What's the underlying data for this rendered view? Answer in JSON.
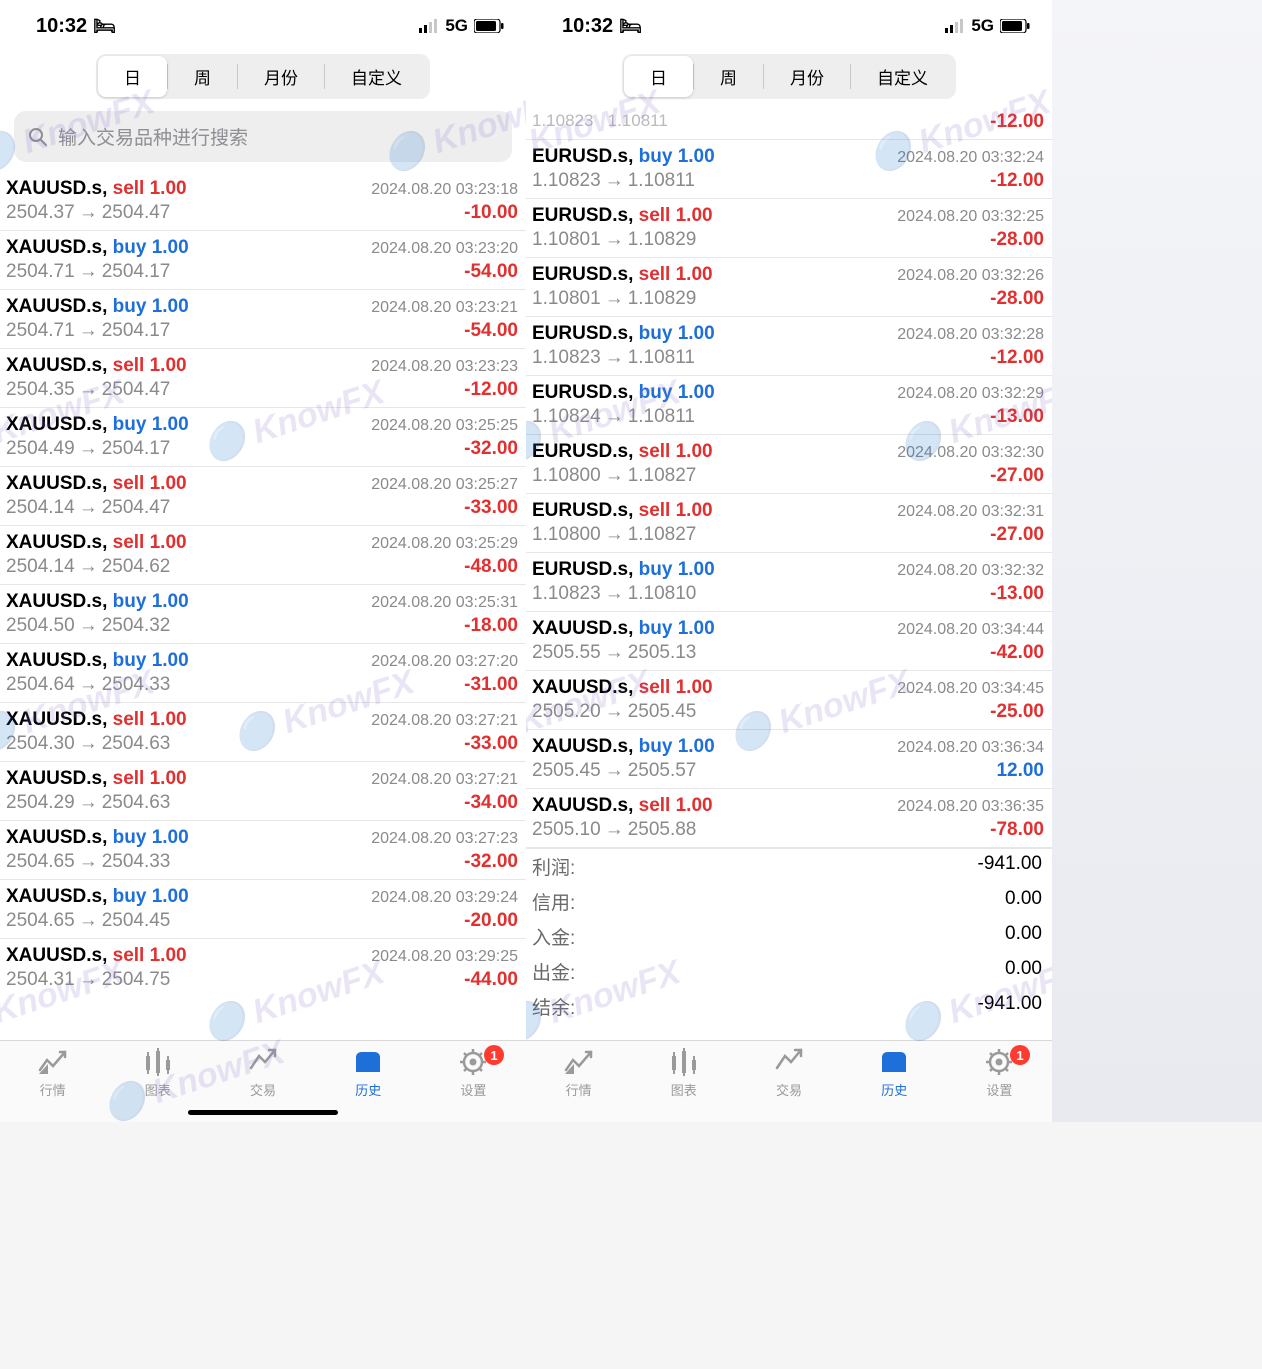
{
  "status": {
    "time": "10:32",
    "network": "5G"
  },
  "tabs": {
    "seg": [
      "日",
      "周",
      "月份",
      "自定义"
    ],
    "active": 0
  },
  "search_placeholder": "输入交易品种进行搜索",
  "left_trades": [
    {
      "sym": "XAUUSD.s",
      "act": "sell",
      "vol": "1.00",
      "ts": "2024.08.20 03:23:18",
      "p1": "2504.37",
      "p2": "2504.47",
      "pl": "-10.00"
    },
    {
      "sym": "XAUUSD.s",
      "act": "buy",
      "vol": "1.00",
      "ts": "2024.08.20 03:23:20",
      "p1": "2504.71",
      "p2": "2504.17",
      "pl": "-54.00"
    },
    {
      "sym": "XAUUSD.s",
      "act": "buy",
      "vol": "1.00",
      "ts": "2024.08.20 03:23:21",
      "p1": "2504.71",
      "p2": "2504.17",
      "pl": "-54.00"
    },
    {
      "sym": "XAUUSD.s",
      "act": "sell",
      "vol": "1.00",
      "ts": "2024.08.20 03:23:23",
      "p1": "2504.35",
      "p2": "2504.47",
      "pl": "-12.00"
    },
    {
      "sym": "XAUUSD.s",
      "act": "buy",
      "vol": "1.00",
      "ts": "2024.08.20 03:25:25",
      "p1": "2504.49",
      "p2": "2504.17",
      "pl": "-32.00"
    },
    {
      "sym": "XAUUSD.s",
      "act": "sell",
      "vol": "1.00",
      "ts": "2024.08.20 03:25:27",
      "p1": "2504.14",
      "p2": "2504.47",
      "pl": "-33.00"
    },
    {
      "sym": "XAUUSD.s",
      "act": "sell",
      "vol": "1.00",
      "ts": "2024.08.20 03:25:29",
      "p1": "2504.14",
      "p2": "2504.62",
      "pl": "-48.00"
    },
    {
      "sym": "XAUUSD.s",
      "act": "buy",
      "vol": "1.00",
      "ts": "2024.08.20 03:25:31",
      "p1": "2504.50",
      "p2": "2504.32",
      "pl": "-18.00"
    },
    {
      "sym": "XAUUSD.s",
      "act": "buy",
      "vol": "1.00",
      "ts": "2024.08.20 03:27:20",
      "p1": "2504.64",
      "p2": "2504.33",
      "pl": "-31.00"
    },
    {
      "sym": "XAUUSD.s",
      "act": "sell",
      "vol": "1.00",
      "ts": "2024.08.20 03:27:21",
      "p1": "2504.30",
      "p2": "2504.63",
      "pl": "-33.00"
    },
    {
      "sym": "XAUUSD.s",
      "act": "sell",
      "vol": "1.00",
      "ts": "2024.08.20 03:27:21",
      "p1": "2504.29",
      "p2": "2504.63",
      "pl": "-34.00"
    },
    {
      "sym": "XAUUSD.s",
      "act": "buy",
      "vol": "1.00",
      "ts": "2024.08.20 03:27:23",
      "p1": "2504.65",
      "p2": "2504.33",
      "pl": "-32.00"
    },
    {
      "sym": "XAUUSD.s",
      "act": "buy",
      "vol": "1.00",
      "ts": "2024.08.20 03:29:24",
      "p1": "2504.65",
      "p2": "2504.45",
      "pl": "-20.00"
    },
    {
      "sym": "XAUUSD.s",
      "act": "sell",
      "vol": "1.00",
      "ts": "2024.08.20 03:29:25",
      "p1": "2504.31",
      "p2": "2504.75",
      "pl": "-44.00"
    }
  ],
  "right_partial": {
    "pl": "-12.00"
  },
  "right_trades": [
    {
      "sym": "EURUSD.s",
      "act": "buy",
      "vol": "1.00",
      "ts": "2024.08.20 03:32:24",
      "p1": "1.10823",
      "p2": "1.10811",
      "pl": "-12.00"
    },
    {
      "sym": "EURUSD.s",
      "act": "sell",
      "vol": "1.00",
      "ts": "2024.08.20 03:32:25",
      "p1": "1.10801",
      "p2": "1.10829",
      "pl": "-28.00"
    },
    {
      "sym": "EURUSD.s",
      "act": "sell",
      "vol": "1.00",
      "ts": "2024.08.20 03:32:26",
      "p1": "1.10801",
      "p2": "1.10829",
      "pl": "-28.00"
    },
    {
      "sym": "EURUSD.s",
      "act": "buy",
      "vol": "1.00",
      "ts": "2024.08.20 03:32:28",
      "p1": "1.10823",
      "p2": "1.10811",
      "pl": "-12.00"
    },
    {
      "sym": "EURUSD.s",
      "act": "buy",
      "vol": "1.00",
      "ts": "2024.08.20 03:32:29",
      "p1": "1.10824",
      "p2": "1.10811",
      "pl": "-13.00"
    },
    {
      "sym": "EURUSD.s",
      "act": "sell",
      "vol": "1.00",
      "ts": "2024.08.20 03:32:30",
      "p1": "1.10800",
      "p2": "1.10827",
      "pl": "-27.00"
    },
    {
      "sym": "EURUSD.s",
      "act": "sell",
      "vol": "1.00",
      "ts": "2024.08.20 03:32:31",
      "p1": "1.10800",
      "p2": "1.10827",
      "pl": "-27.00"
    },
    {
      "sym": "EURUSD.s",
      "act": "buy",
      "vol": "1.00",
      "ts": "2024.08.20 03:32:32",
      "p1": "1.10823",
      "p2": "1.10810",
      "pl": "-13.00"
    },
    {
      "sym": "XAUUSD.s",
      "act": "buy",
      "vol": "1.00",
      "ts": "2024.08.20 03:34:44",
      "p1": "2505.55",
      "p2": "2505.13",
      "pl": "-42.00"
    },
    {
      "sym": "XAUUSD.s",
      "act": "sell",
      "vol": "1.00",
      "ts": "2024.08.20 03:34:45",
      "p1": "2505.20",
      "p2": "2505.45",
      "pl": "-25.00"
    },
    {
      "sym": "XAUUSD.s",
      "act": "buy",
      "vol": "1.00",
      "ts": "2024.08.20 03:36:34",
      "p1": "2505.45",
      "p2": "2505.57",
      "pl": "12.00"
    },
    {
      "sym": "XAUUSD.s",
      "act": "sell",
      "vol": "1.00",
      "ts": "2024.08.20 03:36:35",
      "p1": "2505.10",
      "p2": "2505.88",
      "pl": "-78.00"
    }
  ],
  "summary": [
    {
      "label": "利润:",
      "val": "-941.00"
    },
    {
      "label": "信用:",
      "val": "0.00"
    },
    {
      "label": "入金:",
      "val": "0.00"
    },
    {
      "label": "出金:",
      "val": "0.00"
    },
    {
      "label": "结余:",
      "val": "-941.00"
    }
  ],
  "bottom_tabs": [
    {
      "label": "行情",
      "icon": "quotes"
    },
    {
      "label": "图表",
      "icon": "chart"
    },
    {
      "label": "交易",
      "icon": "trade"
    },
    {
      "label": "历史",
      "icon": "history"
    },
    {
      "label": "设置",
      "icon": "settings",
      "badge": "1"
    }
  ],
  "bottom_active": 3,
  "watermark_text": "KnowFX",
  "colors": {
    "sell": "#e03030",
    "buy": "#1e6fd9",
    "neg": "#e03030",
    "pos": "#1e6fd9",
    "ts": "#8a8a8a"
  }
}
